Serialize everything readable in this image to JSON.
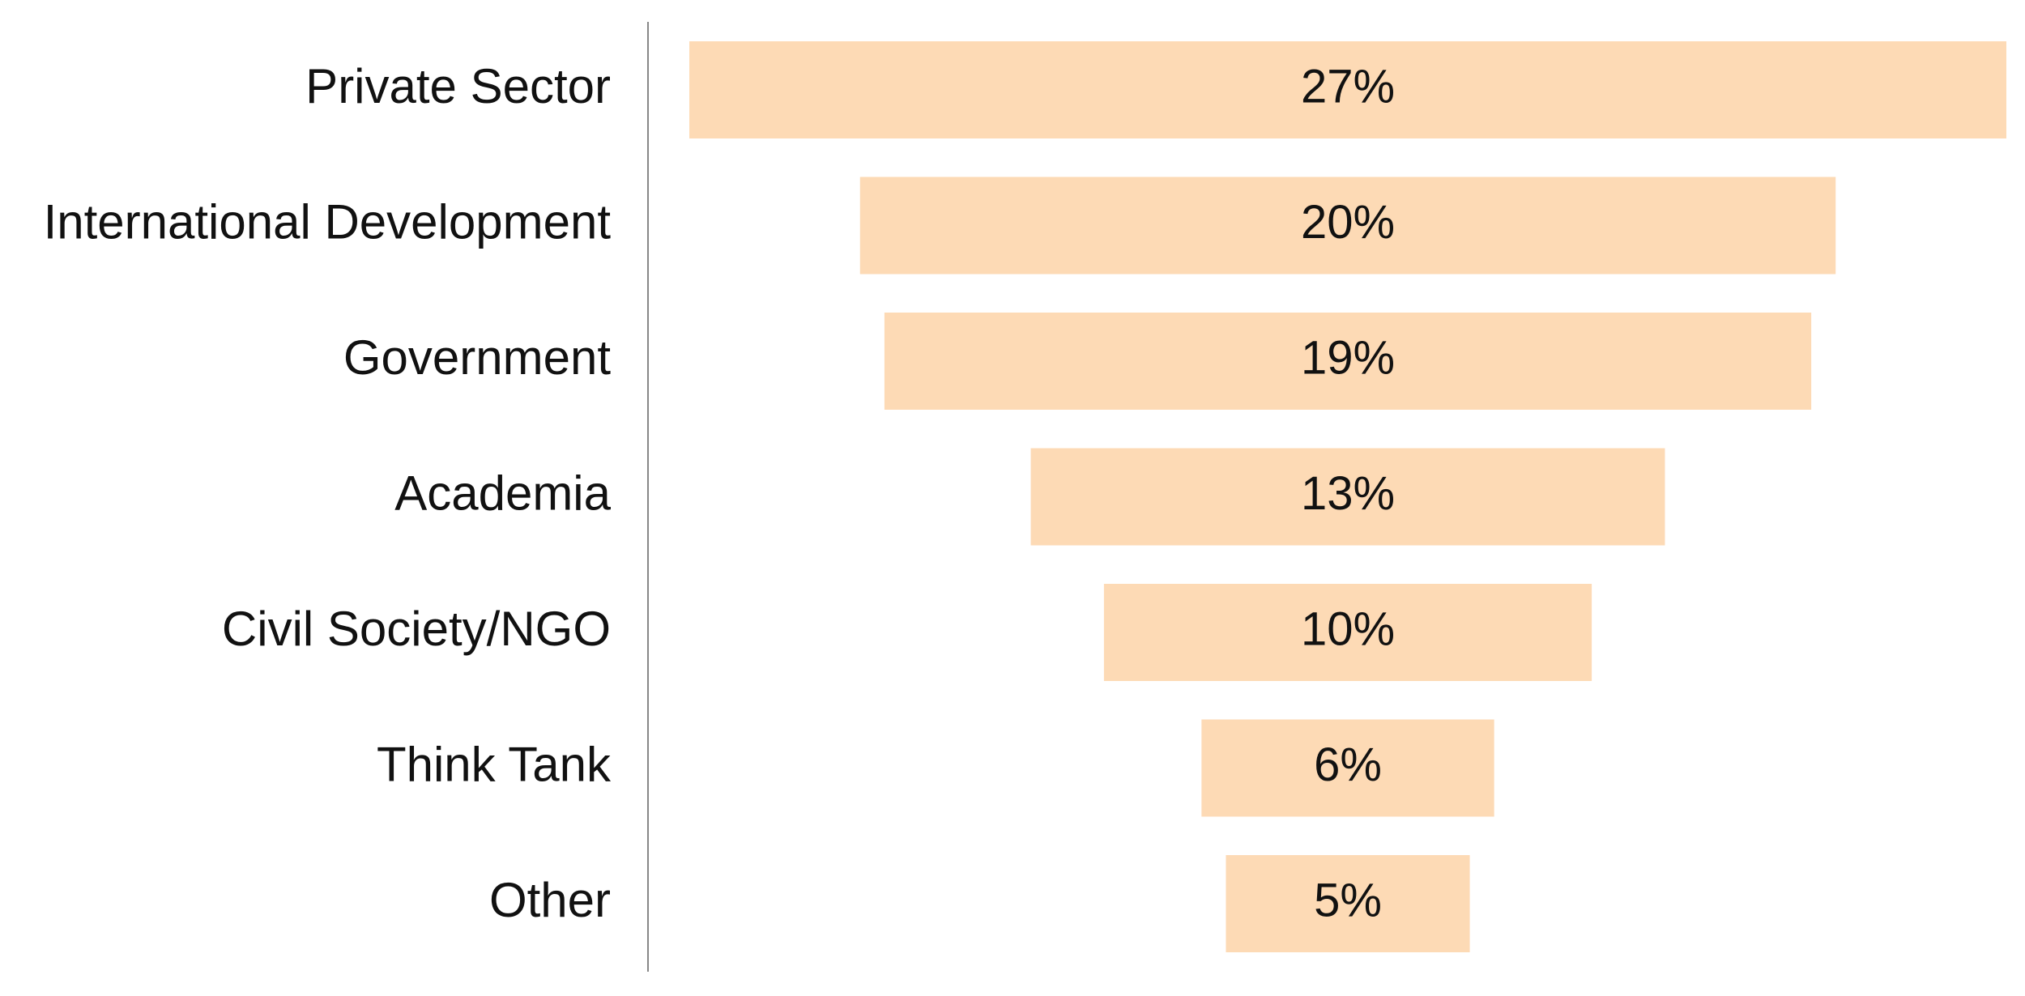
{
  "chart_data": {
    "type": "funnel",
    "categories": [
      "Private Sector",
      "International Development",
      "Government",
      "Academia",
      "Civil Society/NGO",
      "Think Tank",
      "Other"
    ],
    "values": [
      27,
      20,
      19,
      13,
      10,
      6,
      5
    ],
    "value_labels": [
      "27%",
      "20%",
      "19%",
      "13%",
      "10%",
      "6%",
      "5%"
    ],
    "color": "#fddab5"
  }
}
